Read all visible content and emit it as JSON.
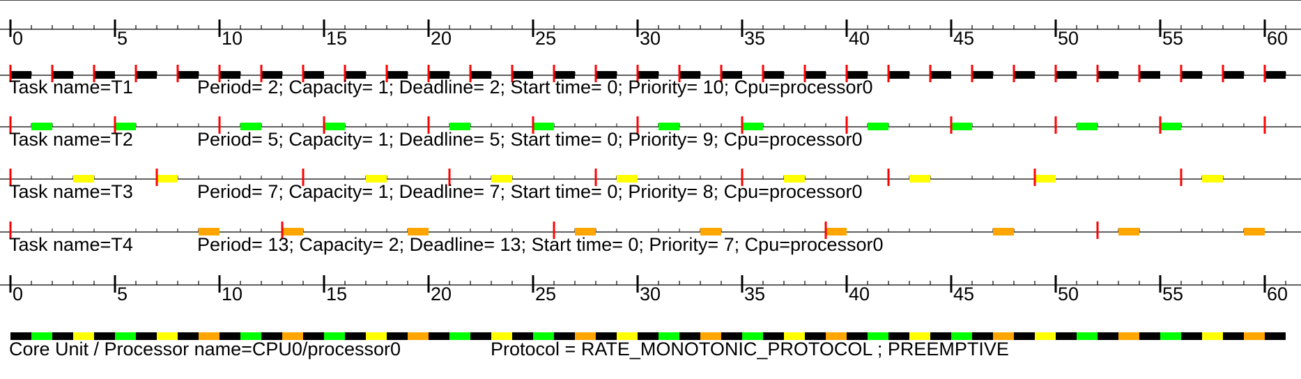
{
  "colors": {
    "background": "#ffffff",
    "axis": "#000000",
    "deadline_marker": "#ff0000",
    "task_colors": [
      "#000000",
      "#00ff00",
      "#ffff00",
      "#ffa500"
    ]
  },
  "time_axis": {
    "start": 0,
    "end": 61,
    "major_step": 5,
    "minor_step": 1,
    "major_labels": [
      "0",
      "5",
      "10",
      "15",
      "20",
      "25",
      "30",
      "35",
      "40",
      "45",
      "50",
      "55",
      "60"
    ]
  },
  "tasks": [
    {
      "name_label": "Task name=T1",
      "info_label": "Period= 2; Capacity= 1; Deadline= 2; Start time= 0; Priority= 10; Cpu=processor0",
      "period": 2,
      "capacity": 1,
      "deadline": 2,
      "start_time": 0,
      "priority": 10,
      "cpu": "processor0"
    },
    {
      "name_label": "Task name=T2",
      "info_label": "Period= 5; Capacity= 1; Deadline= 5; Start time= 0; Priority= 9; Cpu=processor0",
      "period": 5,
      "capacity": 1,
      "deadline": 5,
      "start_time": 0,
      "priority": 9,
      "cpu": "processor0"
    },
    {
      "name_label": "Task name=T3",
      "info_label": "Period= 7; Capacity= 1; Deadline= 7; Start time= 0; Priority= 8; Cpu=processor0",
      "period": 7,
      "capacity": 1,
      "deadline": 7,
      "start_time": 0,
      "priority": 8,
      "cpu": "processor0"
    },
    {
      "name_label": "Task name=T4",
      "info_label": "Period= 13; Capacity= 2; Deadline= 13; Start time= 0; Priority= 7; Cpu=processor0",
      "period": 13,
      "capacity": 2,
      "deadline": 13,
      "start_time": 0,
      "priority": 7,
      "cpu": "processor0"
    }
  ],
  "processor": {
    "name_label": "Core Unit / Processor name=CPU0/processor0",
    "protocol_label": "Protocol = RATE_MONOTONIC_PROTOCOL ; PREEMPTIVE"
  }
}
